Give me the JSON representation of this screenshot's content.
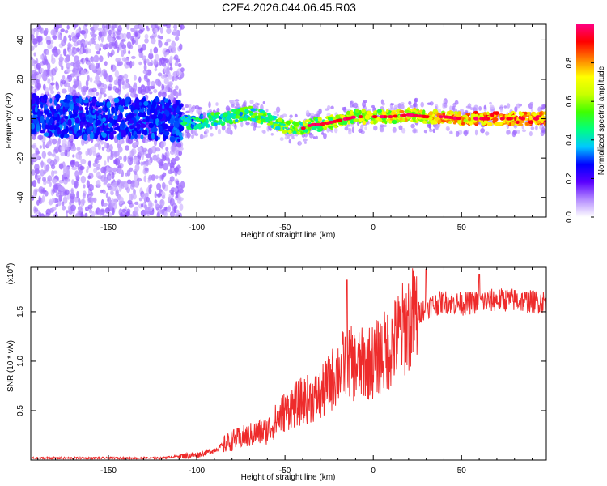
{
  "title": "C2E4.2026.044.06.45.R03",
  "colors": {
    "line": "#ee2b2b",
    "frame": "#000000"
  },
  "chart_data": [
    {
      "type": "heatmap",
      "xlabel": "Height of straight line (km)",
      "ylabel": "Frequency (Hz)",
      "xlim": [
        -194,
        98
      ],
      "ylim": [
        -50,
        48
      ],
      "x_ticks": [
        -150,
        -100,
        -50,
        0,
        50
      ],
      "y_ticks": [
        -40,
        -20,
        0,
        20,
        40
      ],
      "x_tick_labels": [
        "-150",
        "-100",
        "-50",
        "0",
        "50"
      ],
      "y_tick_labels": [
        "-40",
        "-20",
        "0",
        "20",
        "40"
      ],
      "colorbar": {
        "label": "Normalized spectral amplitude",
        "range": [
          0,
          1
        ],
        "ticks": [
          0,
          0.2,
          0.4,
          0.6,
          0.8
        ],
        "tick_labels": [
          "0.0",
          "0.2",
          "0.4",
          "0.6",
          "0.8"
        ],
        "colormap": [
          "#ffffff",
          "#b48cff",
          "#5a00ff",
          "#0000ff",
          "#00c8ff",
          "#00ff80",
          "#40ff00",
          "#c8ff00",
          "#ffff00",
          "#ff8000",
          "#ff0000",
          "#ff0080"
        ]
      },
      "ridge": {
        "x": [
          -194,
          -150,
          -120,
          -110,
          -100,
          -90,
          -80,
          -70,
          -60,
          -50,
          -40,
          -35,
          -30,
          -20,
          -10,
          0,
          10,
          20,
          30,
          40,
          50,
          60,
          70,
          80,
          90,
          98
        ],
        "y": [
          2,
          0,
          0,
          -1,
          -2,
          0,
          1,
          3,
          0,
          -4,
          -5,
          -3,
          -3,
          -1,
          1,
          1,
          1,
          2,
          1,
          1,
          0,
          0,
          0,
          0,
          0,
          0
        ]
      }
    },
    {
      "type": "line",
      "xlabel": "Height of straight line (km)",
      "ylabel": "SNR (10 * v/v)",
      "y_scale_label": "(x10",
      "y_scale_exponent": "4",
      "y_scale_suffix": ")",
      "xlim": [
        -194,
        98
      ],
      "ylim": [
        0,
        1.95
      ],
      "x_ticks": [
        -150,
        -100,
        -50,
        0,
        50
      ],
      "y_ticks": [
        0.5,
        1.0,
        1.5
      ],
      "x_tick_labels": [
        "-150",
        "-100",
        "-50",
        "0",
        "50"
      ],
      "y_tick_labels": [
        "0.5",
        "1.0",
        "1.5"
      ],
      "envelope": {
        "x": [
          -194,
          -120,
          -110,
          -100,
          -90,
          -80,
          -70,
          -60,
          -50,
          -40,
          -30,
          -20,
          -15,
          -10,
          0,
          10,
          20,
          30,
          40,
          50,
          60,
          70,
          80,
          90,
          98
        ],
        "y": [
          0.02,
          0.02,
          0.04,
          0.05,
          0.1,
          0.2,
          0.25,
          0.3,
          0.5,
          0.6,
          0.65,
          0.9,
          1.0,
          0.95,
          1.0,
          1.15,
          1.4,
          1.55,
          1.6,
          1.58,
          1.6,
          1.62,
          1.62,
          1.6,
          1.6
        ]
      },
      "peaks": [
        {
          "x": -15,
          "y": 1.82
        },
        {
          "x": 30,
          "y": 1.93
        },
        {
          "x": 60,
          "y": 1.88
        }
      ]
    }
  ]
}
